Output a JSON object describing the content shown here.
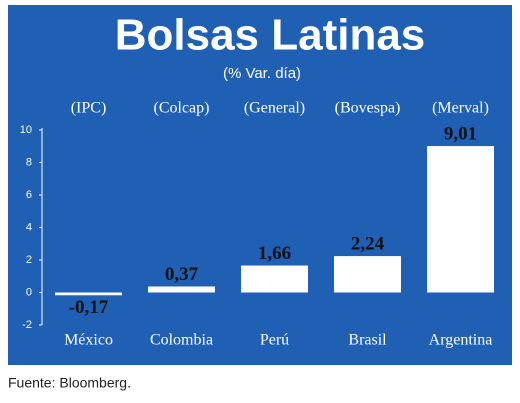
{
  "chart_data": {
    "type": "bar",
    "title": "Bolsas Latinas",
    "subtitle": "(% Var. día)",
    "categories": [
      "México",
      "Colombia",
      "Perú",
      "Brasil",
      "Argentina"
    ],
    "indices": [
      "(IPC)",
      "(Colcap)",
      "(General)",
      "(Bovespa)",
      "(Merval)"
    ],
    "values": [
      -0.17,
      0.37,
      1.66,
      2.24,
      9.01
    ],
    "value_labels": [
      "-0,17",
      "0,37",
      "1,66",
      "2,24",
      "9,01"
    ],
    "color": "#ffffff",
    "background": "#1f5fb4",
    "ylim": [
      -2,
      10
    ],
    "yticks": [
      -2,
      0,
      2,
      4,
      6,
      8,
      10
    ],
    "source": "Fuente: Bloomberg."
  }
}
